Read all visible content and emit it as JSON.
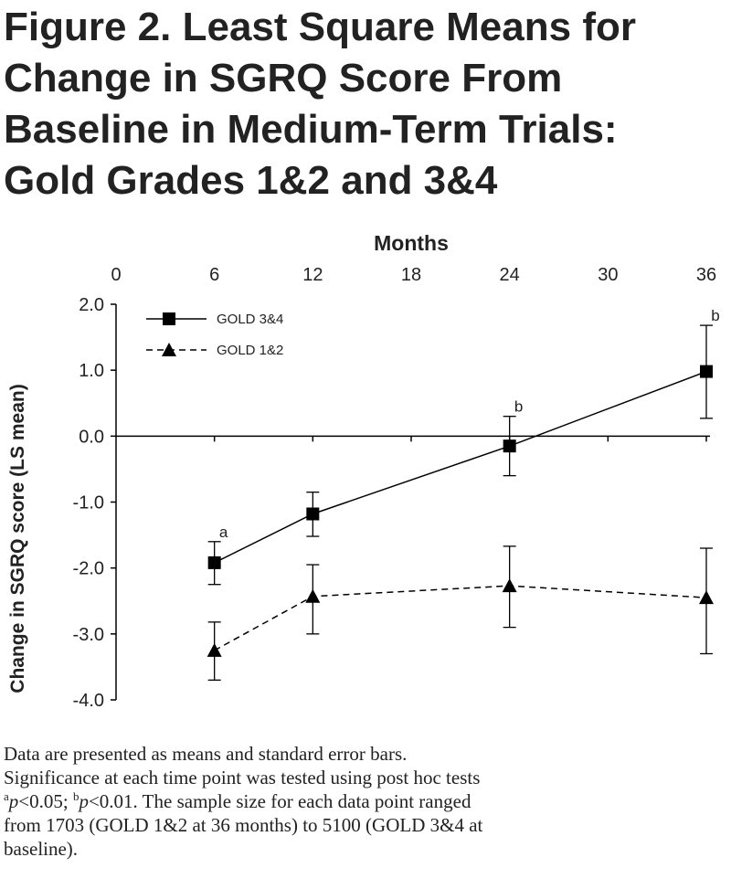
{
  "title_lines": [
    "Figure 2. Least Square Means for",
    "Change in SGRQ Score From",
    "Baseline in Medium-Term Trials:",
    "Gold Grades 1&2 and 3&4"
  ],
  "chart_data": {
    "type": "line",
    "xlabel": "Months",
    "ylabel": "Change in SGRQ score (LS mean)",
    "xlim": [
      0,
      36
    ],
    "ylim": [
      -4.0,
      2.0
    ],
    "x_ticks": [
      0,
      6,
      12,
      18,
      24,
      30,
      36
    ],
    "y_ticks": [
      "2.0",
      "1.0",
      "0.0",
      "-1.0",
      "-2.0",
      "-3.0",
      "-4.0"
    ],
    "x_axis_position": "top",
    "grid": false,
    "legend_position": "top-left",
    "series": [
      {
        "name": "GOLD 3&4",
        "marker": "square",
        "line_style": "solid",
        "color": "#000000",
        "x": [
          6,
          12,
          24,
          36
        ],
        "y": [
          -1.92,
          -1.18,
          -0.15,
          0.98
        ],
        "err_low": [
          -2.25,
          -1.52,
          -0.6,
          0.27
        ],
        "err_high": [
          -1.6,
          -0.85,
          0.3,
          1.68
        ],
        "annotations": [
          "a",
          "",
          "b",
          "b"
        ]
      },
      {
        "name": "GOLD 1&2",
        "marker": "triangle",
        "line_style": "dashed",
        "color": "#000000",
        "x": [
          6,
          12,
          24,
          36
        ],
        "y": [
          -3.25,
          -2.43,
          -2.27,
          -2.45
        ],
        "err_low": [
          -3.7,
          -3.0,
          -2.9,
          -3.3
        ],
        "err_high": [
          -2.82,
          -1.95,
          -1.67,
          -1.7
        ],
        "annotations": [
          "",
          "",
          "",
          ""
        ]
      }
    ]
  },
  "caption": {
    "line1": "Data are presented as means and standard error bars.",
    "line2": "Significance at each time point was tested using post hoc tests",
    "sup_a": "a",
    "p_a": "p",
    "sig_a": "<0.05; ",
    "sup_b": "b",
    "p_b": "p",
    "sig_b": "<0.01.  The sample size for each data point ranged",
    "line4": "from 1703 (GOLD 1&2 at 36 months) to 5100 (GOLD 3&4 at",
    "line5": "baseline)."
  }
}
